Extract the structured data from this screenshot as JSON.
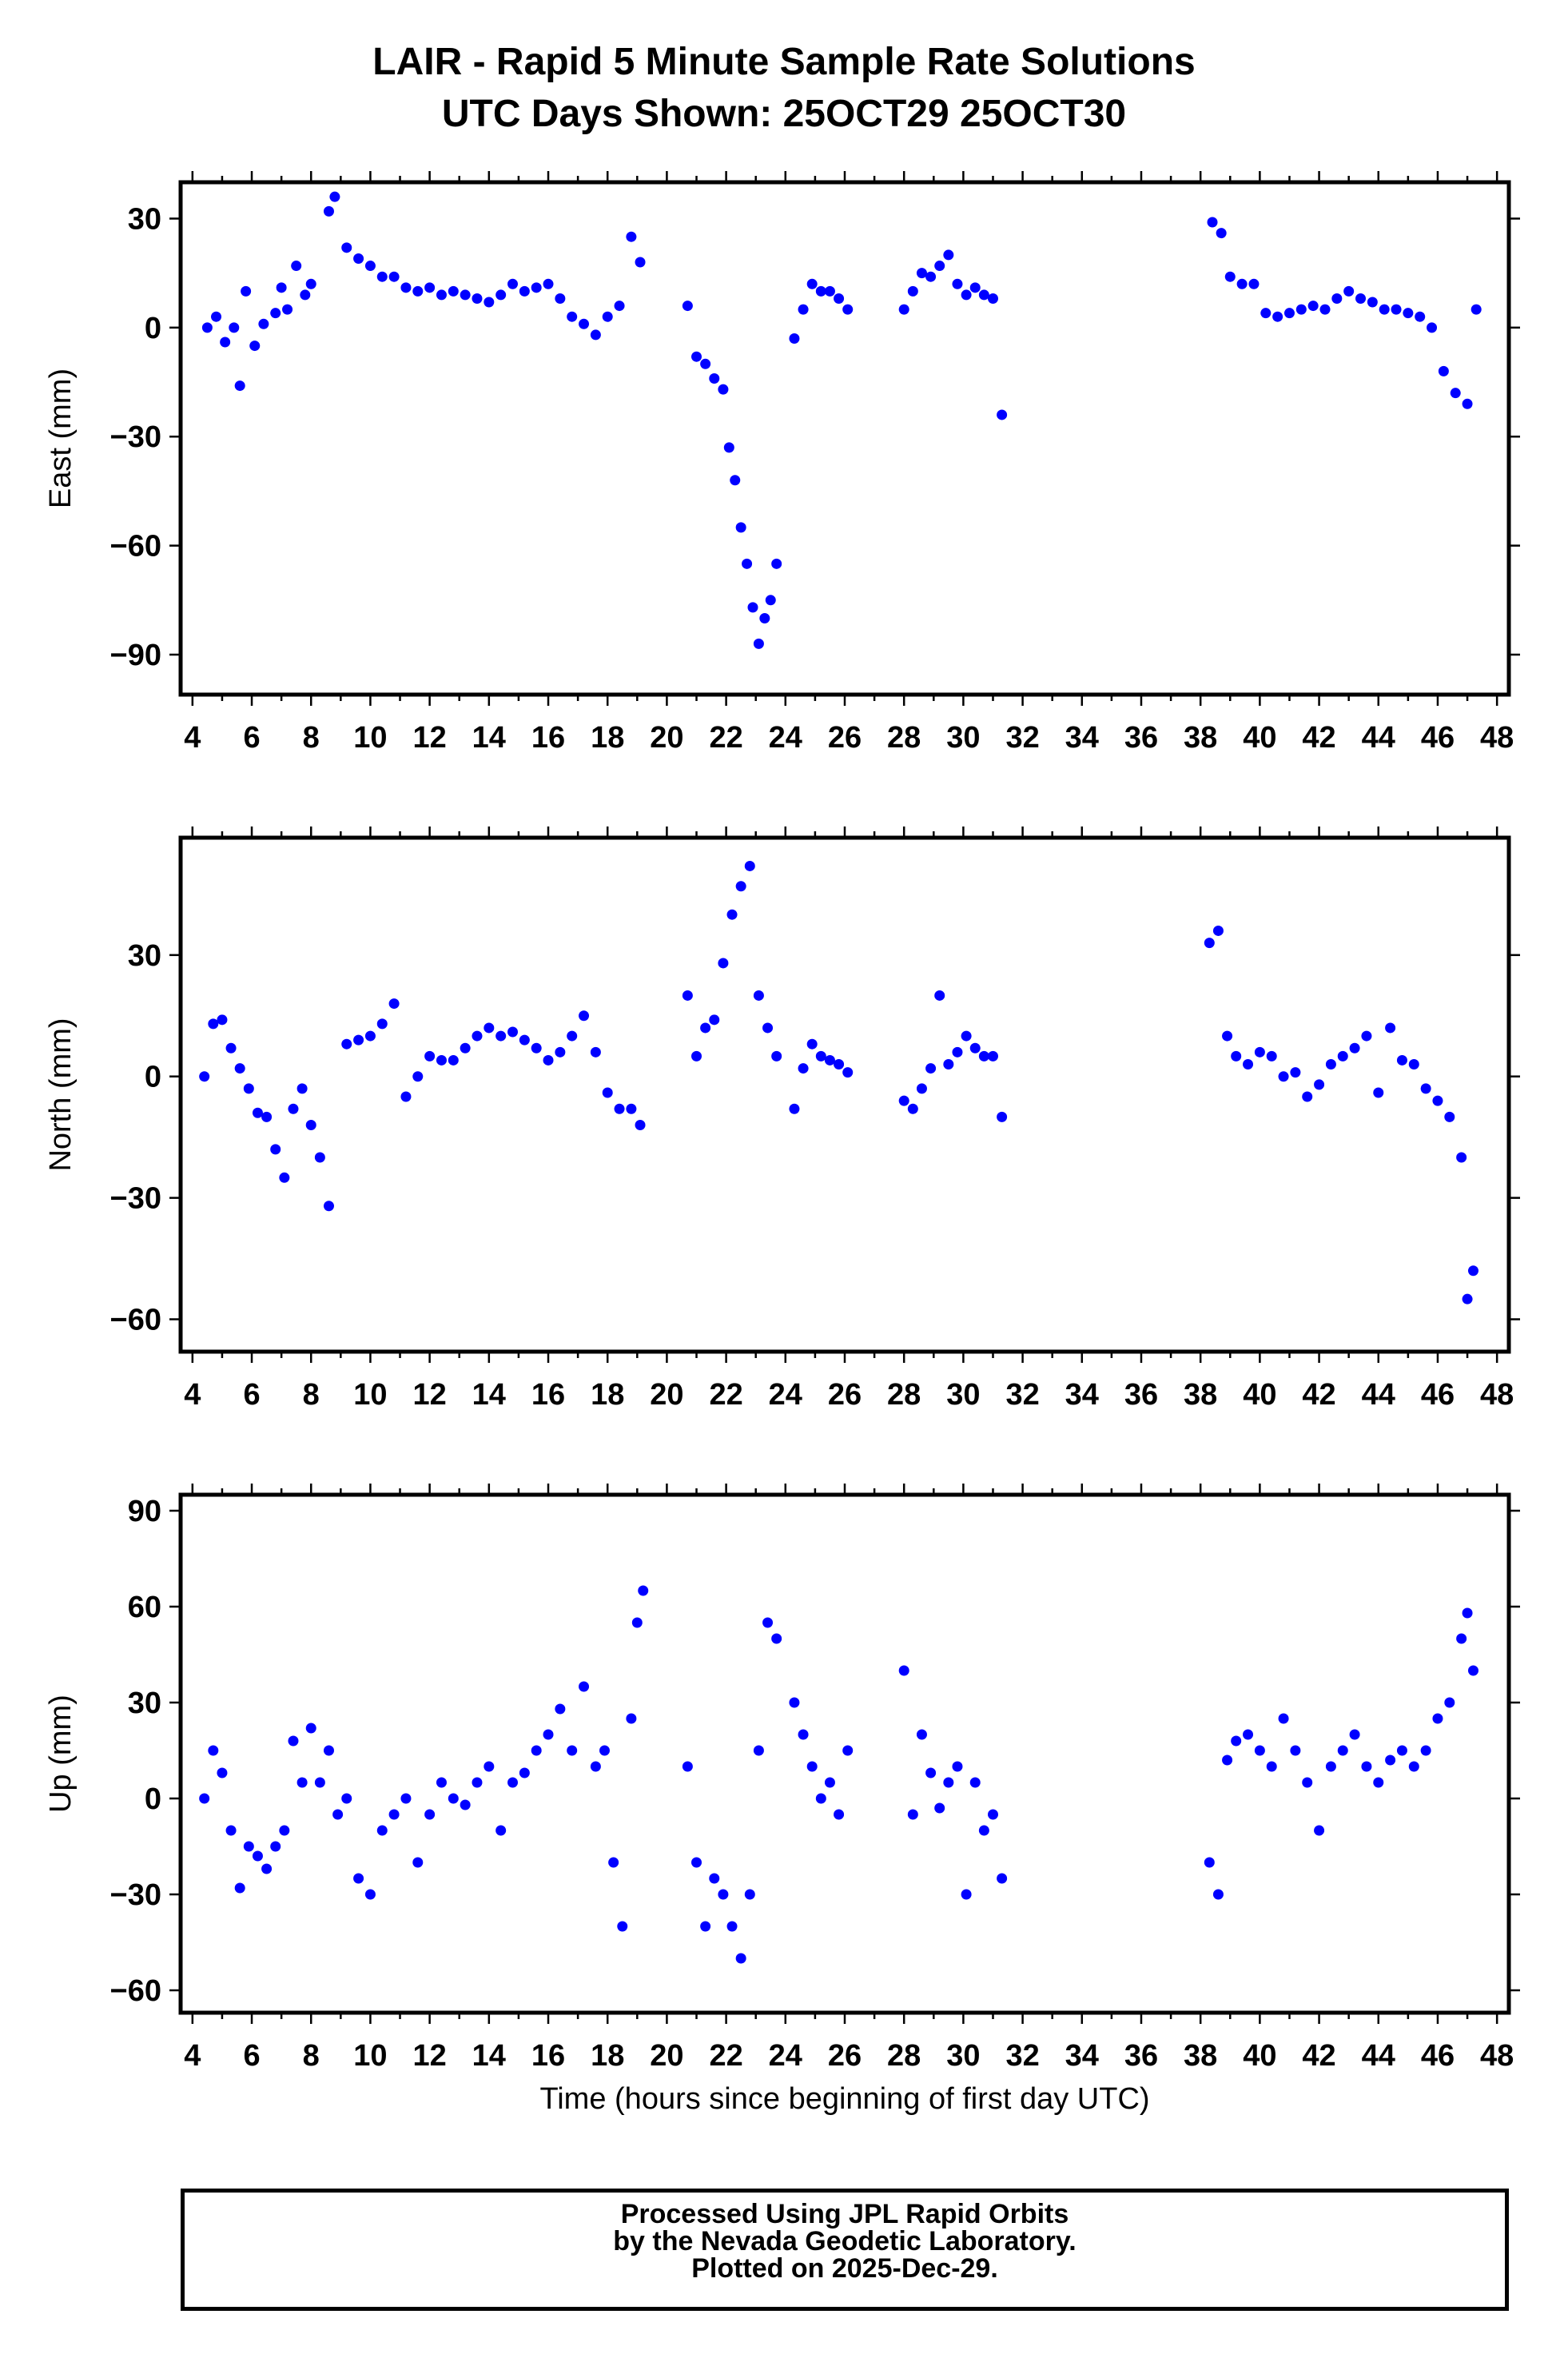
{
  "title": {
    "line1": "LAIR - Rapid 5 Minute Sample Rate Solutions",
    "line2": "UTC Days Shown:  25OCT29 25OCT30"
  },
  "colors": {
    "points": "#0000ff",
    "axes": "#000000",
    "background": "#ffffff"
  },
  "footer": {
    "line1": "Processed Using JPL Rapid Orbits",
    "line2": "by the Nevada Geodetic Laboratory.",
    "line3": "Plotted on 2025-Dec-29."
  },
  "chart_data": [
    {
      "type": "scatter",
      "ylabel": "East (mm)",
      "xlabel": "",
      "xlim": [
        3.6,
        48.4
      ],
      "ylim": [
        -101,
        40
      ],
      "xticks": [
        4,
        6,
        8,
        10,
        12,
        14,
        16,
        18,
        20,
        22,
        24,
        26,
        28,
        30,
        32,
        34,
        36,
        38,
        40,
        42,
        44,
        46,
        48
      ],
      "yticks": [
        -90,
        -60,
        -30,
        0,
        30
      ],
      "ytick_labels": [
        "−90",
        "−60",
        "−30",
        "0",
        "30"
      ],
      "grid": false,
      "series": [
        {
          "x": [],
          "y": []
        }
      ],
      "segments": [
        {
          "x": [
            4.5,
            4.8,
            5.1,
            5.4,
            5.6,
            5.8,
            6.1,
            6.4,
            6.8,
            7.0,
            7.2,
            7.5,
            7.8,
            8.0
          ],
          "y": [
            0,
            3,
            -4,
            0,
            -16,
            10,
            -5,
            1,
            4,
            11,
            5,
            17,
            9,
            12
          ]
        },
        {
          "x": [
            8.6,
            8.8
          ],
          "y": [
            32,
            36
          ]
        },
        {
          "x": [
            9.2,
            9.6,
            10.0,
            10.4,
            10.8,
            11.2,
            11.6,
            12.0,
            12.4,
            12.8,
            13.2,
            13.6,
            14.0,
            14.4,
            14.8,
            15.2,
            15.6,
            16.0,
            16.4,
            16.8,
            17.2,
            17.6,
            18.0,
            18.4,
            18.8,
            19.1
          ],
          "y": [
            22,
            19,
            17,
            14,
            14,
            11,
            10,
            11,
            9,
            10,
            9,
            8,
            7,
            9,
            12,
            10,
            11,
            12,
            8,
            3,
            1,
            -2,
            3,
            6,
            25,
            18
          ]
        },
        {
          "x": [
            20.7,
            21.0,
            21.3,
            21.6,
            21.9,
            22.1,
            22.3,
            22.5,
            22.7,
            22.9,
            23.1,
            23.3,
            23.5,
            23.7
          ],
          "y": [
            6,
            -8,
            -10,
            -14,
            -17,
            -33,
            -42,
            -55,
            -65,
            -77,
            -87,
            -80,
            -75,
            -65
          ]
        },
        {
          "x": [
            24.3,
            24.6,
            24.9,
            25.2,
            25.5,
            25.8,
            26.1
          ],
          "y": [
            -3,
            5,
            12,
            10,
            10,
            8,
            5
          ]
        },
        {
          "x": [
            28.0,
            28.3,
            28.6,
            28.9,
            29.2,
            29.5,
            29.8,
            30.1,
            30.4,
            30.7,
            31.0,
            31.3
          ],
          "y": [
            5,
            10,
            15,
            14,
            17,
            20,
            12,
            9,
            11,
            9,
            8,
            -24
          ]
        },
        {
          "x": [
            38.4,
            38.7,
            39.0,
            39.4,
            39.8,
            40.2,
            40.6,
            41.0,
            41.4,
            41.8,
            42.2,
            42.6,
            43.0,
            43.4,
            43.8,
            44.2,
            44.6,
            45.0,
            45.4,
            45.8,
            46.2,
            46.6,
            47.0,
            47.3
          ],
          "y": [
            29,
            26,
            14,
            12,
            12,
            4,
            3,
            4,
            5,
            6,
            5,
            8,
            10,
            8,
            7,
            5,
            5,
            4,
            3,
            0,
            -12,
            -18,
            -21,
            5
          ]
        }
      ]
    },
    {
      "type": "scatter",
      "ylabel": "North (mm)",
      "xlabel": "",
      "xlim": [
        3.6,
        48.4
      ],
      "ylim": [
        -68,
        59
      ],
      "xticks": [
        4,
        6,
        8,
        10,
        12,
        14,
        16,
        18,
        20,
        22,
        24,
        26,
        28,
        30,
        32,
        34,
        36,
        38,
        40,
        42,
        44,
        46,
        48
      ],
      "yticks": [
        -60,
        -30,
        0,
        30
      ],
      "ytick_labels": [
        "−60",
        "−30",
        "0",
        "30"
      ],
      "grid": false,
      "series": [
        {
          "x": [],
          "y": []
        }
      ],
      "segments": [
        {
          "x": [
            4.4,
            4.7,
            5.0,
            5.3,
            5.6,
            5.9,
            6.2,
            6.5,
            6.8,
            7.1,
            7.4,
            7.7,
            8.0,
            8.3,
            8.6
          ],
          "y": [
            0,
            13,
            14,
            7,
            2,
            -3,
            -9,
            -10,
            -18,
            -25,
            -8,
            -3,
            -12,
            -20,
            -32
          ]
        },
        {
          "x": [
            9.2,
            9.6,
            10.0,
            10.4,
            10.8,
            11.2,
            11.6,
            12.0,
            12.4,
            12.8,
            13.2,
            13.6,
            14.0,
            14.4,
            14.8,
            15.2,
            15.6,
            16.0,
            16.4,
            16.8,
            17.2,
            17.6,
            18.0,
            18.4,
            18.8,
            19.1
          ],
          "y": [
            8,
            9,
            10,
            13,
            18,
            -5,
            0,
            5,
            4,
            4,
            7,
            10,
            12,
            10,
            11,
            9,
            7,
            4,
            6,
            10,
            15,
            6,
            -4,
            -8,
            -8,
            -12
          ]
        },
        {
          "x": [
            20.7,
            21.0,
            21.3,
            21.6,
            21.9,
            22.2,
            22.5,
            22.8,
            23.1,
            23.4,
            23.7
          ],
          "y": [
            20,
            5,
            12,
            14,
            28,
            40,
            47,
            52,
            20,
            12,
            5
          ]
        },
        {
          "x": [
            24.3,
            24.6,
            24.9,
            25.2,
            25.5,
            25.8,
            26.1
          ],
          "y": [
            -8,
            2,
            8,
            5,
            4,
            3,
            1
          ]
        },
        {
          "x": [
            28.0,
            28.3,
            28.6,
            28.9,
            29.2,
            29.5,
            29.8,
            30.1,
            30.4,
            30.7,
            31.0,
            31.3
          ],
          "y": [
            -6,
            -8,
            -3,
            2,
            20,
            3,
            6,
            10,
            7,
            5,
            5,
            -10
          ]
        },
        {
          "x": [
            38.3,
            38.6,
            38.9,
            39.2,
            39.6,
            40.0,
            40.4,
            40.8,
            41.2,
            41.6,
            42.0,
            42.4,
            42.8,
            43.2,
            43.6,
            44.0,
            44.4,
            44.8,
            45.2,
            45.6,
            46.0,
            46.4,
            46.8,
            47.0,
            47.2
          ],
          "y": [
            33,
            36,
            10,
            5,
            3,
            6,
            5,
            0,
            1,
            -5,
            -2,
            3,
            5,
            7,
            10,
            -4,
            12,
            4,
            3,
            -3,
            -6,
            -10,
            -20,
            -55,
            -48
          ]
        }
      ]
    },
    {
      "type": "scatter",
      "ylabel": "Up (mm)",
      "xlabel": "Time (hours since beginning of first day UTC)",
      "xlim": [
        3.6,
        48.4
      ],
      "ylim": [
        -67,
        95
      ],
      "xticks": [
        4,
        6,
        8,
        10,
        12,
        14,
        16,
        18,
        20,
        22,
        24,
        26,
        28,
        30,
        32,
        34,
        36,
        38,
        40,
        42,
        44,
        46,
        48
      ],
      "yticks": [
        -60,
        -30,
        0,
        30,
        60,
        90
      ],
      "ytick_labels": [
        "−60",
        "−30",
        "0",
        "30",
        "60",
        "90"
      ],
      "grid": false,
      "series": [
        {
          "x": [],
          "y": []
        }
      ],
      "segments": [
        {
          "x": [
            4.4,
            4.7,
            5.0,
            5.3,
            5.6,
            5.9,
            6.2,
            6.5,
            6.8,
            7.1,
            7.4,
            7.7,
            8.0,
            8.3,
            8.6,
            8.9,
            9.2,
            9.6,
            10.0,
            10.4,
            10.8,
            11.2,
            11.6,
            12.0,
            12.4,
            12.8,
            13.2,
            13.6,
            14.0,
            14.4,
            14.8,
            15.2,
            15.6,
            16.0,
            16.4,
            16.8,
            17.2,
            17.6,
            17.9,
            18.2,
            18.5,
            18.8,
            19.0,
            19.2
          ],
          "y": [
            0,
            15,
            8,
            -10,
            -28,
            -15,
            -18,
            -22,
            -15,
            -10,
            18,
            5,
            22,
            5,
            15,
            -5,
            0,
            -25,
            -30,
            -10,
            -5,
            0,
            -20,
            -5,
            5,
            0,
            -2,
            5,
            10,
            -10,
            5,
            8,
            15,
            20,
            28,
            15,
            35,
            10,
            15,
            -20,
            -40,
            25,
            55,
            65
          ]
        },
        {
          "x": [
            20.7,
            21.0,
            21.3,
            21.6,
            21.9,
            22.2,
            22.5,
            22.8,
            23.1,
            23.4,
            23.7
          ],
          "y": [
            10,
            -20,
            -40,
            -25,
            -30,
            -40,
            -50,
            -30,
            15,
            55,
            50
          ]
        },
        {
          "x": [
            24.3,
            24.6,
            24.9,
            25.2,
            25.5,
            25.8,
            26.1
          ],
          "y": [
            30,
            20,
            10,
            0,
            5,
            -5,
            15
          ]
        },
        {
          "x": [
            28.0,
            28.3,
            28.6,
            28.9,
            29.2,
            29.5,
            29.8,
            30.1,
            30.4,
            30.7,
            31.0,
            31.3
          ],
          "y": [
            40,
            -5,
            20,
            8,
            -3,
            5,
            10,
            -30,
            5,
            -10,
            -5,
            -25
          ]
        },
        {
          "x": [
            38.3,
            38.6,
            38.9,
            39.2,
            39.6,
            40.0,
            40.4,
            40.8,
            41.2,
            41.6,
            42.0,
            42.4,
            42.8,
            43.2,
            43.6,
            44.0,
            44.4,
            44.8,
            45.2,
            45.6,
            46.0,
            46.4,
            46.8,
            47.0,
            47.2
          ],
          "y": [
            -20,
            -30,
            12,
            18,
            20,
            15,
            10,
            25,
            15,
            5,
            -10,
            10,
            15,
            20,
            10,
            5,
            12,
            15,
            10,
            15,
            25,
            30,
            50,
            58,
            40
          ]
        }
      ]
    }
  ]
}
